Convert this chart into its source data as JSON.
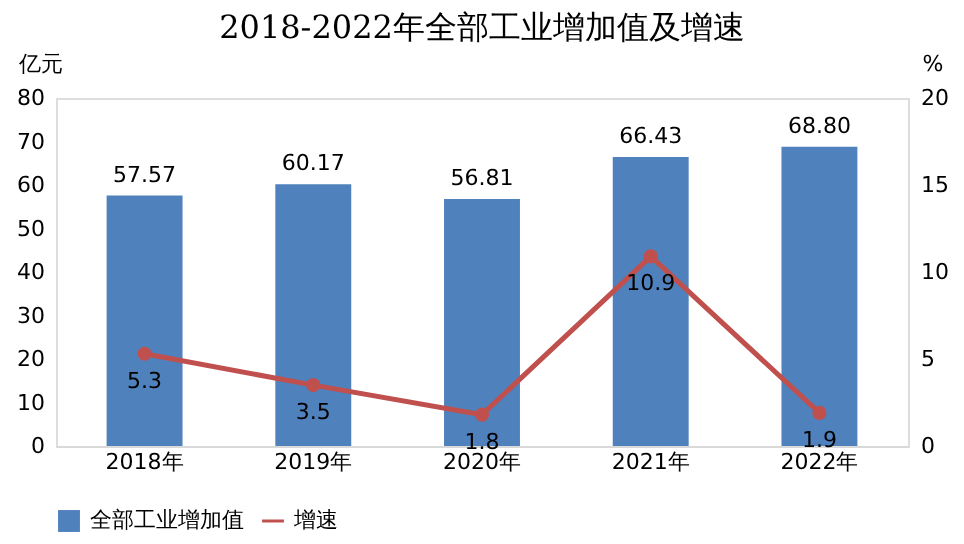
{
  "chart_data": {
    "type": "bar",
    "title": "2018-2022年全部工业增加值及增速",
    "ylabel": "亿元",
    "y2label": "%",
    "categories": [
      "2018年",
      "2019年",
      "2020年",
      "2021年",
      "2022年"
    ],
    "series": [
      {
        "name": "全部工业增加值",
        "color": "#4f81bd",
        "values": [
          57.57,
          60.17,
          56.81,
          66.43,
          68.8
        ],
        "value_labels": [
          "57.57",
          "60.17",
          "56.81",
          "66.43",
          "68.80"
        ]
      },
      {
        "name": "增速",
        "type": "line",
        "axis": "y2",
        "color": "#c0504d",
        "marker": "circle",
        "values": [
          5.3,
          3.5,
          1.8,
          10.9,
          1.9
        ],
        "value_labels": [
          "5.3",
          "3.5",
          "1.8",
          "10.9",
          "1.9"
        ]
      }
    ],
    "ylim": [
      0,
      80
    ],
    "yticks": [
      0,
      10,
      20,
      30,
      40,
      50,
      60,
      70,
      80
    ],
    "y2lim": [
      0,
      20
    ],
    "y2ticks": [
      0,
      5,
      10,
      15,
      20
    ],
    "grid": false,
    "legend": "bottom"
  }
}
